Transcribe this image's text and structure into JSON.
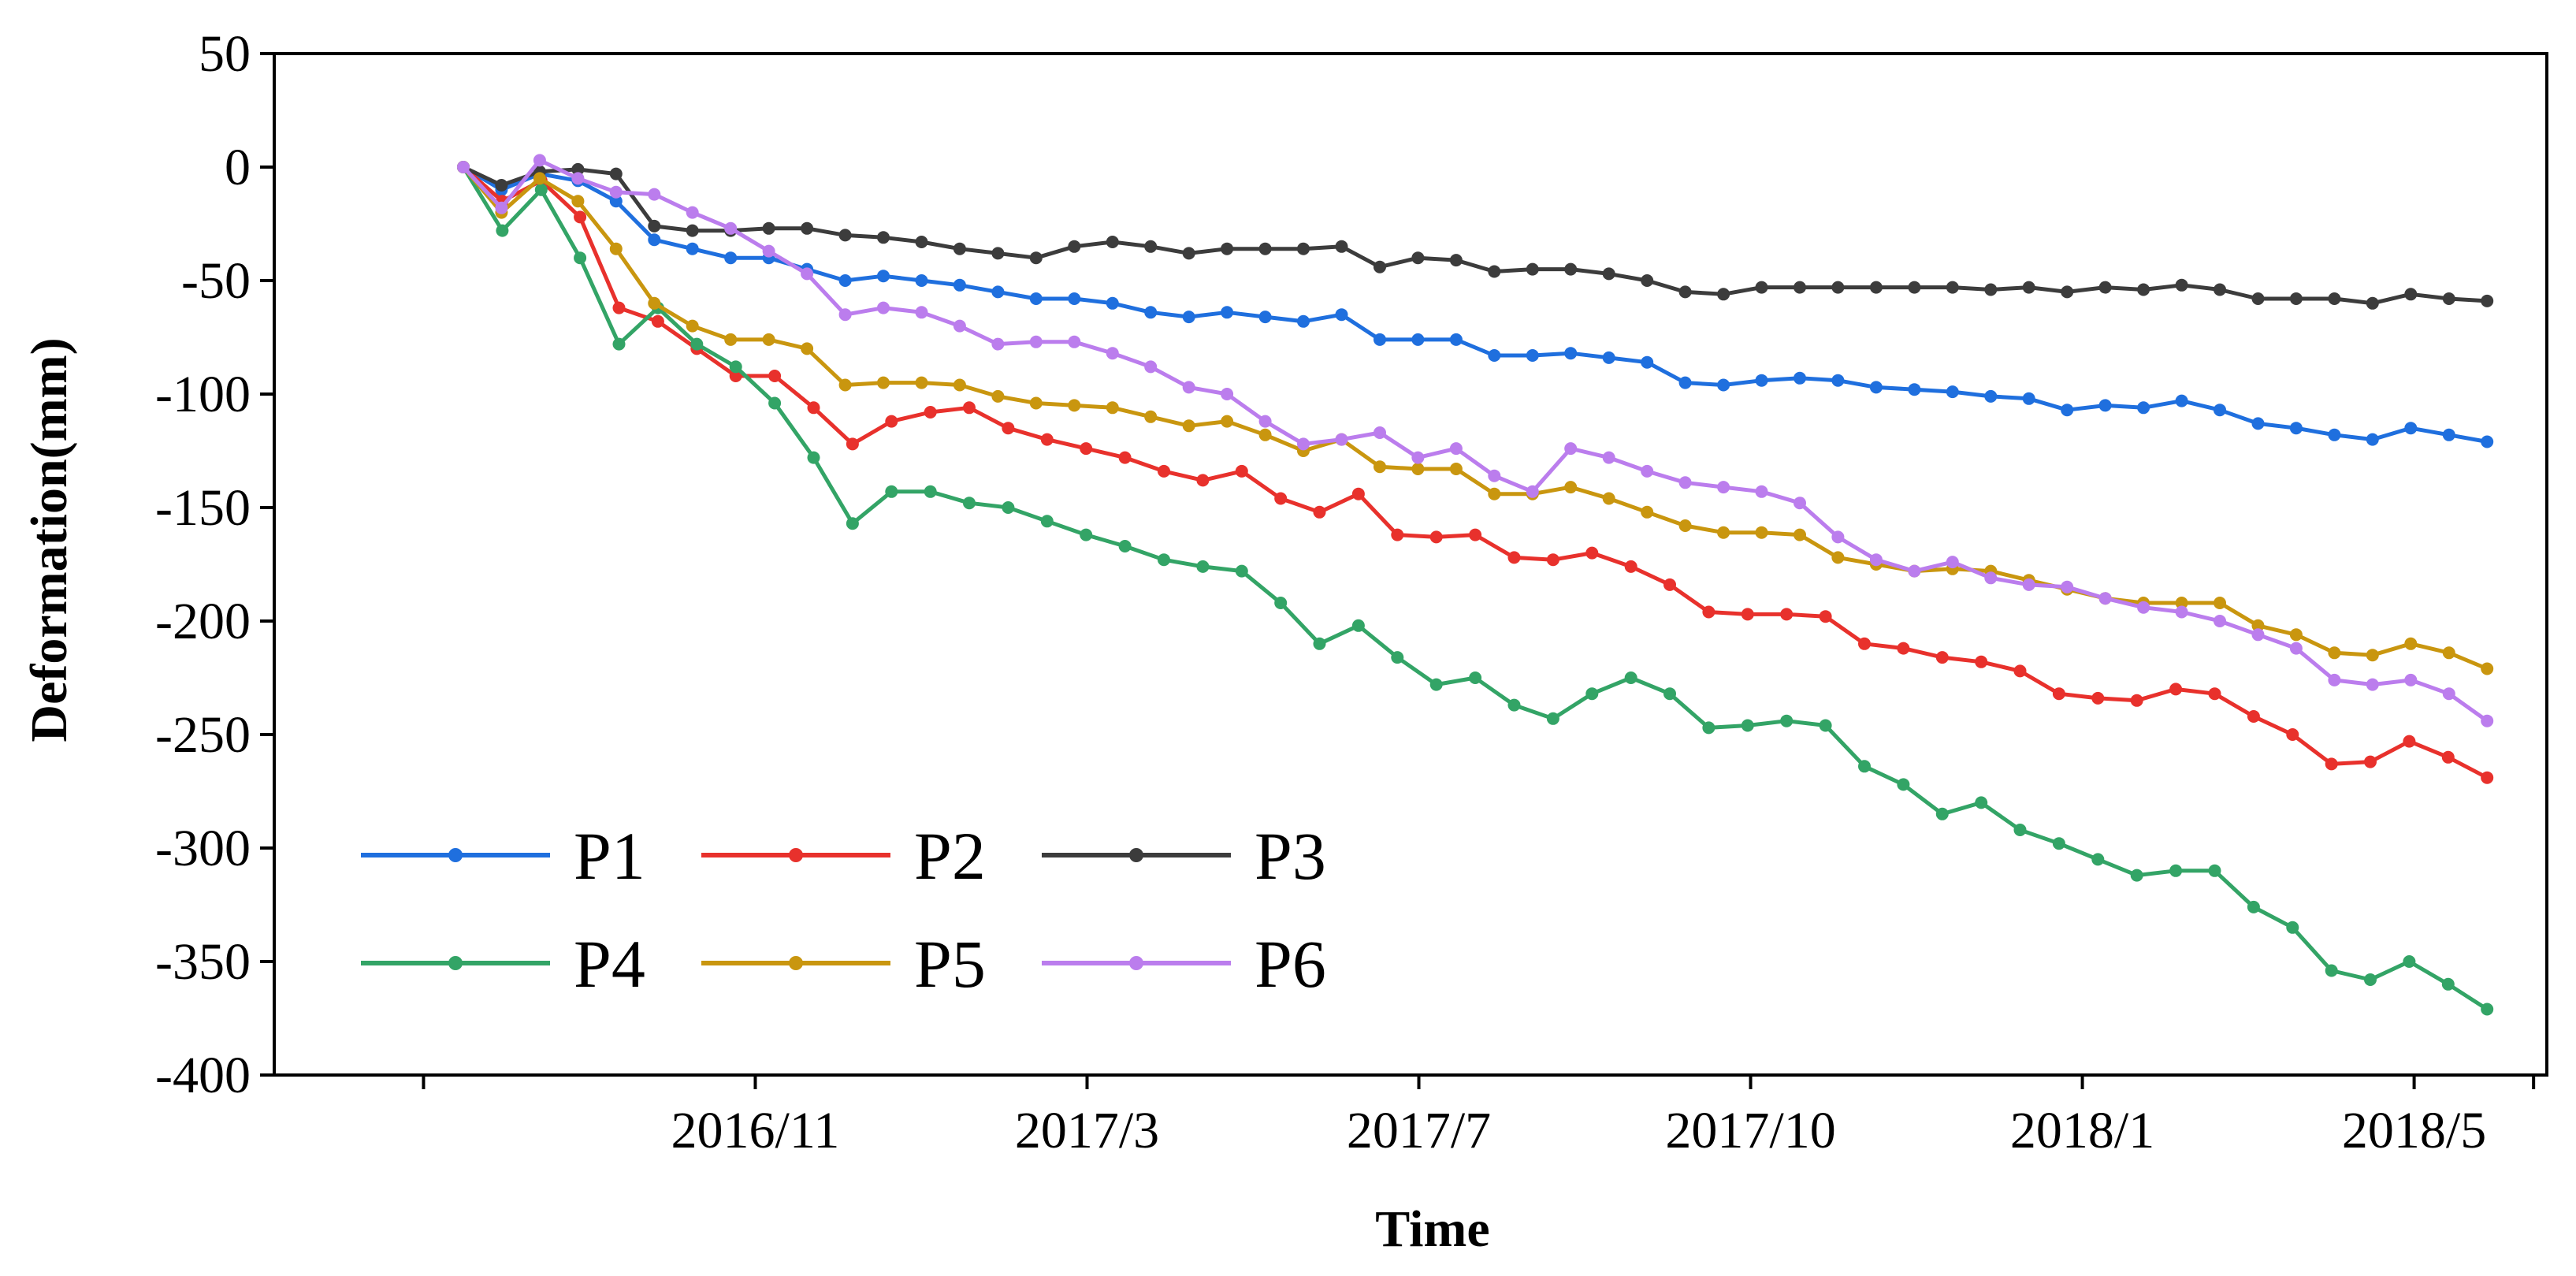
{
  "chart_data": {
    "type": "line",
    "title": "",
    "xlabel": "Time",
    "ylabel": "Deformation(mm)",
    "ylim": [
      -400,
      50
    ],
    "yticks": [
      50,
      0,
      -50,
      -100,
      -150,
      -200,
      -250,
      -300,
      -350,
      -400
    ],
    "ytick_labels": [
      "50",
      "0",
      "-50",
      "-100",
      "-150",
      "-200",
      "-250",
      "-300",
      "-350",
      "-400"
    ],
    "xlim": [
      -0.45,
      6.4
    ],
    "xticks": [
      0,
      1,
      2,
      3,
      4,
      5,
      6
    ],
    "xtick_labels": [
      "",
      "2016/11",
      "2017/3",
      "2017/7",
      "2017/10",
      "2018/1",
      "2018/5"
    ],
    "legend_position": "bottom-left",
    "series": [
      {
        "name": "P1",
        "color": "#1f6fde",
        "values": [
          0,
          -10,
          -3,
          -6,
          -15,
          -32,
          -36,
          -40,
          -40,
          -45,
          -50,
          -48,
          -50,
          -52,
          -55,
          -58,
          -58,
          -60,
          -64,
          -66,
          -64,
          -66,
          -68,
          -65,
          -76,
          -76,
          -76,
          -83,
          -83,
          -82,
          -84,
          -86,
          -95,
          -96,
          -94,
          -93,
          -94,
          -97,
          -98,
          -99,
          -101,
          -102,
          -107,
          -105,
          -106,
          -103,
          -107,
          -113,
          -115,
          -118,
          -120,
          -115,
          -118,
          -121
        ]
      },
      {
        "name": "P2",
        "color": "#e8312c",
        "values": [
          0,
          -15,
          -6,
          -22,
          -62,
          -68,
          -80,
          -92,
          -92,
          -106,
          -122,
          -112,
          -108,
          -106,
          -115,
          -120,
          -124,
          -128,
          -134,
          -138,
          -134,
          -146,
          -152,
          -144,
          -162,
          -163,
          -162,
          -172,
          -173,
          -170,
          -176,
          -184,
          -196,
          -197,
          -197,
          -198,
          -210,
          -212,
          -216,
          -218,
          -222,
          -232,
          -234,
          -235,
          -230,
          -232,
          -242,
          -250,
          -263,
          -262,
          -253,
          -260,
          -269
        ]
      },
      {
        "name": "P3",
        "color": "#3c3c3c",
        "values": [
          0,
          -8,
          -2,
          -1,
          -3,
          -26,
          -28,
          -28,
          -27,
          -27,
          -30,
          -31,
          -33,
          -36,
          -38,
          -40,
          -35,
          -33,
          -35,
          -38,
          -36,
          -36,
          -36,
          -35,
          -44,
          -40,
          -41,
          -46,
          -45,
          -45,
          -47,
          -50,
          -55,
          -56,
          -53,
          -53,
          -53,
          -53,
          -53,
          -53,
          -54,
          -53,
          -55,
          -53,
          -54,
          -52,
          -54,
          -58,
          -58,
          -58,
          -60,
          -56,
          -58,
          -59
        ]
      },
      {
        "name": "P4",
        "color": "#33a466",
        "values": [
          0,
          -28,
          -10,
          -40,
          -78,
          -62,
          -78,
          -88,
          -104,
          -128,
          -157,
          -143,
          -143,
          -148,
          -150,
          -156,
          -162,
          -167,
          -173,
          -176,
          -178,
          -192,
          -210,
          -202,
          -216,
          -228,
          -225,
          -237,
          -243,
          -232,
          -225,
          -232,
          -247,
          -246,
          -244,
          -246,
          -264,
          -272,
          -285,
          -280,
          -292,
          -298,
          -305,
          -312,
          -310,
          -310,
          -326,
          -335,
          -354,
          -358,
          -350,
          -360,
          -371
        ]
      },
      {
        "name": "P5",
        "color": "#c9960f",
        "values": [
          0,
          -20,
          -5,
          -15,
          -36,
          -60,
          -70,
          -76,
          -76,
          -80,
          -96,
          -95,
          -95,
          -96,
          -101,
          -104,
          -105,
          -106,
          -110,
          -114,
          -112,
          -118,
          -125,
          -120,
          -132,
          -133,
          -133,
          -144,
          -144,
          -141,
          -146,
          -152,
          -158,
          -161,
          -161,
          -162,
          -172,
          -175,
          -178,
          -177,
          -178,
          -182,
          -186,
          -190,
          -192,
          -192,
          -192,
          -202,
          -206,
          -214,
          -215,
          -210,
          -214,
          -221
        ]
      },
      {
        "name": "P6",
        "color": "#bb7ded",
        "values": [
          0,
          -18,
          3,
          -5,
          -11,
          -12,
          -20,
          -27,
          -37,
          -47,
          -65,
          -62,
          -64,
          -70,
          -78,
          -77,
          -77,
          -82,
          -88,
          -97,
          -100,
          -112,
          -122,
          -120,
          -117,
          -128,
          -124,
          -136,
          -143,
          -124,
          -128,
          -134,
          -139,
          -141,
          -143,
          -148,
          -163,
          -173,
          -178,
          -174,
          -181,
          -184,
          -185,
          -190,
          -194,
          -196,
          -200,
          -206,
          -212,
          -226,
          -228,
          -226,
          -232,
          -244
        ]
      }
    ]
  }
}
